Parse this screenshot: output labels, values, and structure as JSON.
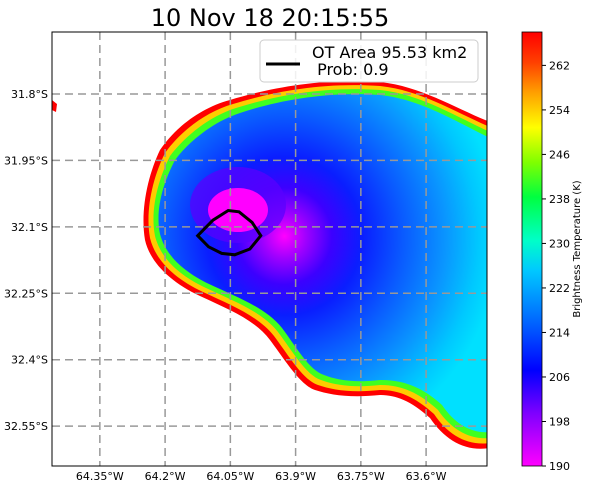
{
  "chart_data": {
    "type": "heatmap",
    "title": "10 Nov 18 20:15:55",
    "legend": {
      "label_line1": "OT Area 95.53 km2",
      "label_line2": " Prob: 0.9",
      "line_color": "#000000",
      "placement": "top-right"
    },
    "x_ticks": [
      {
        "value": -64.35,
        "label": "64.35°W"
      },
      {
        "value": -64.2,
        "label": "64.2°W"
      },
      {
        "value": -64.05,
        "label": "64.05°W"
      },
      {
        "value": -63.9,
        "label": "63.9°W"
      },
      {
        "value": -63.75,
        "label": "63.75°W"
      },
      {
        "value": -63.6,
        "label": "63.6°W"
      }
    ],
    "y_ticks": [
      {
        "value": -31.8,
        "label": "31.8°S"
      },
      {
        "value": -31.95,
        "label": "31.95°S"
      },
      {
        "value": -32.1,
        "label": "32.1°S"
      },
      {
        "value": -32.25,
        "label": "32.25°S"
      },
      {
        "value": -32.4,
        "label": "32.4°S"
      },
      {
        "value": -32.55,
        "label": "32.55°S"
      }
    ],
    "xlim": [
      -64.46,
      -63.46
    ],
    "ylim": [
      -32.64,
      -31.66
    ],
    "grid": true,
    "colorbar": {
      "label": "Brightness Temperature (K)",
      "range": [
        190,
        268
      ],
      "ticks": [
        190,
        198,
        206,
        214,
        222,
        230,
        238,
        246,
        254,
        262
      ],
      "colormap": "gist_rainbow_r (magenta-blue-cyan-green-yellow-red)"
    },
    "overshooting_top": {
      "center_lon": -64.05,
      "center_lat": -32.12,
      "polygon_lon": [
        -64.125,
        -64.09,
        -64.055,
        -64.03,
        -64.0,
        -63.98,
        -64.005,
        -64.04,
        -64.07,
        -64.1
      ],
      "polygon_lat": [
        -32.12,
        -32.085,
        -32.063,
        -32.066,
        -32.09,
        -32.12,
        -32.15,
        -32.163,
        -32.16,
        -32.145
      ],
      "min_brightness_temp_k": 190
    },
    "cloud_field_contours": [
      {
        "temp_k": 262,
        "edge": "outer",
        "color": "#ff0000"
      },
      {
        "temp_k": 230,
        "color": "#00ff80"
      },
      {
        "temp_k": 220,
        "color": "#00c8ff"
      },
      {
        "temp_k": 214,
        "color": "#0080ff"
      },
      {
        "temp_k": 206,
        "color": "#0000ff"
      },
      {
        "temp_k": 198,
        "color": "#8000ff"
      },
      {
        "temp_k": 190,
        "color": "#ff00ff"
      }
    ]
  }
}
